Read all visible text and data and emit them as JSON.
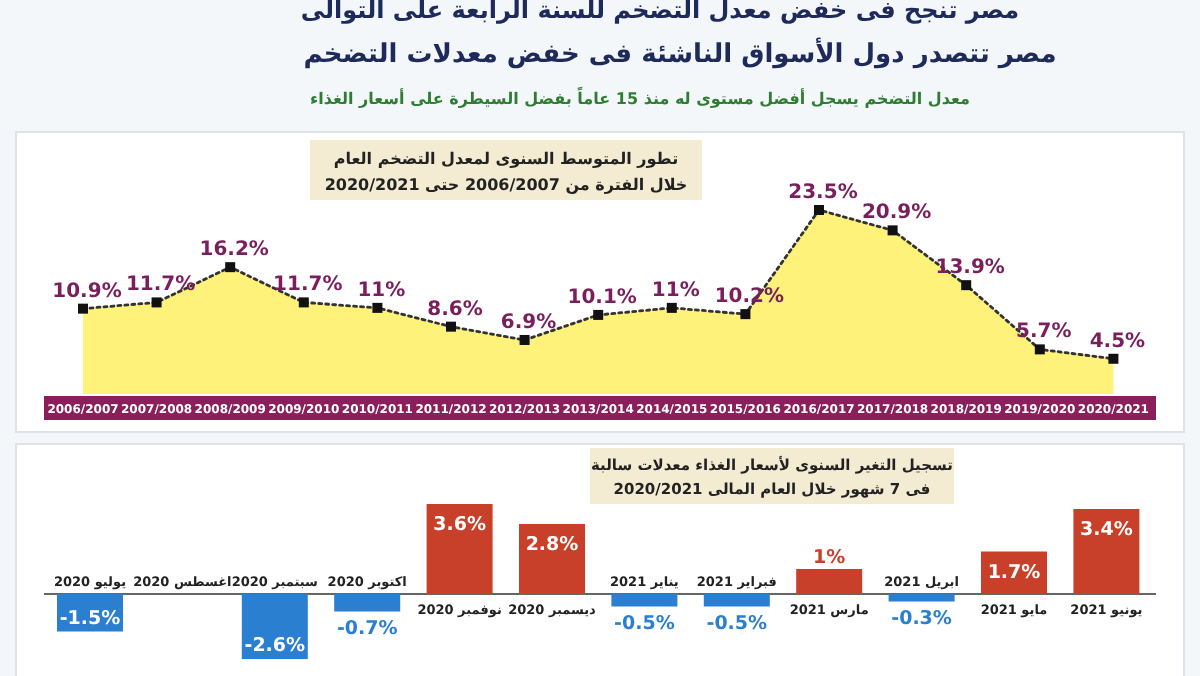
{
  "chart_data": [
    {
      "type": "area",
      "title": "تطور المتوسط السنوى لمعدل التضخم العام",
      "subtitle": "خلال الفترة من 2006/2007 حتى 2020/2021",
      "annotations": [
        "مصر تنجح فى خفض معدل التضخم للسنة الرابعة على التوالى",
        "مصر تتصدر دول الأسواق الناشئة فى خفض معدلات التضخم",
        "معدل التضخم يسجل أفضل مستوى له منذ 15 عاماً بفضل السيطرة على أسعار الغذاء"
      ],
      "categories": [
        "2006/2007",
        "2007/2008",
        "2008/2009",
        "2009/2010",
        "2010/2011",
        "2011/2012",
        "2012/2013",
        "2013/2014",
        "2014/2015",
        "2015/2016",
        "2016/2017",
        "2017/2018",
        "2018/2019",
        "2019/2020",
        "2020/2021"
      ],
      "color": "#fff27a",
      "marker": "square",
      "line_style": "dotted",
      "values": [
        10.9,
        11.7,
        16.2,
        11.7,
        11,
        8.6,
        6.9,
        10.1,
        11,
        10.2,
        23.5,
        20.9,
        13.9,
        5.7,
        4.5
      ],
      "value_labels": [
        "10.9%",
        "11.7%",
        "16.2%",
        "11.7%",
        "11%",
        "8.6%",
        "6.9%",
        "10.1%",
        "11%",
        "10.2%",
        "23.5%",
        "20.9%",
        "13.9%",
        "5.7%",
        "4.5%"
      ]
    },
    {
      "type": "bar",
      "title": "تسجيل التغير السنوى لأسعار الغذاء معدلات سالبة",
      "subtitle": "فى 7 شهور خلال العام المالى 2020/2021",
      "categories": [
        "يوليو 2020",
        "اغسطس 2020",
        "سبتمبر 2020",
        "اكتوبر 2020",
        "نوفمبر 2020",
        "ديسمبر 2020",
        "يناير 2021",
        "فبراير 2021",
        "مارس 2021",
        "ابريل 2021",
        "مايو 2021",
        "يونيو 2021"
      ],
      "values": [
        -1.5,
        null,
        -2.6,
        -0.7,
        3.6,
        2.8,
        -0.5,
        -0.5,
        1,
        -0.3,
        1.7,
        3.4
      ],
      "colors": [
        "#2a7fd0",
        "#2a7fd0",
        "#2a7fd0",
        "#2a7fd0",
        "#c9402a",
        "#c9402a",
        "#2a7fd0",
        "#2a7fd0",
        "#c9402a",
        "#2a7fd0",
        "#c9402a",
        "#c9402a"
      ],
      "value_labels": [
        "-1.5%",
        null,
        "-2.6%",
        "-0.7%",
        "3.6%",
        "2.8%",
        "-0.5%",
        "-0.5%",
        "1%",
        "-0.3%",
        "1.7%",
        "3.4%"
      ]
    }
  ]
}
